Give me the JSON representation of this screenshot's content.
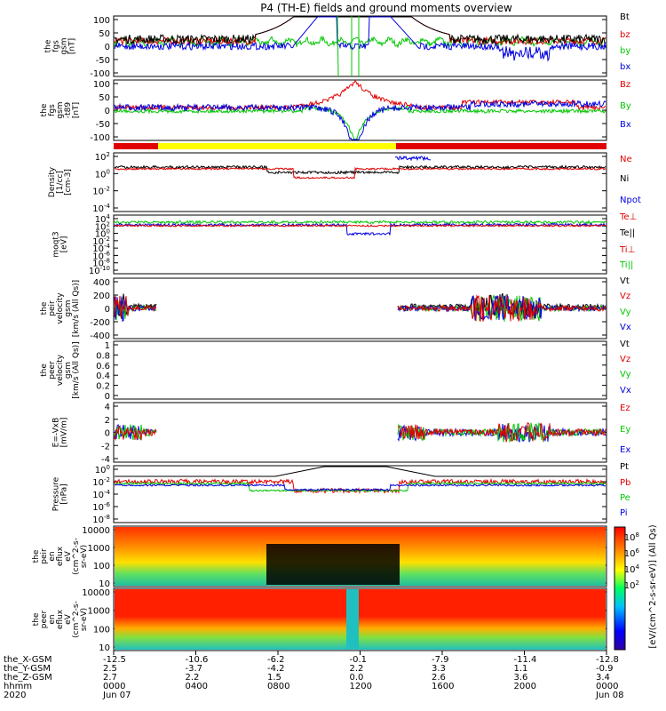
{
  "title": "P4 (TH-E) fields and ground moments overview",
  "colors": {
    "black": "#000000",
    "red": "#e00000",
    "green": "#00c800",
    "blue": "#0000e0",
    "yellow": "#ffff00"
  },
  "chart_data": [
    {
      "type": "line",
      "panel": "fgs_gsm",
      "ylabel": [
        "the",
        "fgs",
        "gsm",
        "[nT]"
      ],
      "yticks": [
        100,
        50,
        0,
        -50,
        -100
      ],
      "ylim": [
        -100,
        100
      ],
      "series": [
        {
          "name": "Bt",
          "color": "#000000"
        },
        {
          "name": "bz",
          "color": "#e00000"
        },
        {
          "name": "by",
          "color": "#00c800"
        },
        {
          "name": "bx",
          "color": "#0000e0"
        }
      ]
    },
    {
      "type": "line",
      "panel": "fgs_gse_detrended",
      "ylabel": [
        "the",
        "fgs",
        "gsm",
        "-t89",
        "[nT]"
      ],
      "yticks": [
        100,
        50,
        0,
        -50,
        -100
      ],
      "ylim": [
        -120,
        110
      ],
      "series": [
        {
          "name": "Bz",
          "color": "#e00000"
        },
        {
          "name": "By",
          "color": "#00c800"
        },
        {
          "name": "Bx",
          "color": "#0000e0"
        }
      ]
    },
    {
      "type": "line",
      "panel": "density",
      "ylabel": [
        "Density",
        "[1/cc]",
        "[cm-3]"
      ],
      "yticks": [
        "10^2",
        "10^0",
        "10^-2",
        "10^-4"
      ],
      "scale": "log",
      "series": [
        {
          "name": "Ne",
          "color": "#e00000"
        },
        {
          "name": "Ni",
          "color": "#000000"
        },
        {
          "name": "Npot",
          "color": "#0000e0"
        }
      ]
    },
    {
      "type": "line",
      "panel": "temperature",
      "ylabel": [
        "moqt3",
        "[eV]"
      ],
      "yticks": [
        "10^4",
        "10^2",
        "10^0",
        "10^-2",
        "10^-4",
        "10^-6",
        "10^-8",
        "10^-10"
      ],
      "scale": "log",
      "series": [
        {
          "name": "Te⊥",
          "color": "#e00000"
        },
        {
          "name": "Te||",
          "color": "#000000"
        },
        {
          "name": "Ti⊥",
          "color": "#e00000"
        },
        {
          "name": "Ti||",
          "color": "#00c800"
        }
      ]
    },
    {
      "type": "line",
      "panel": "peir_velocity",
      "ylabel": [
        "the",
        "peir",
        "velocity",
        "gsm",
        "[km/s (All Qs)]"
      ],
      "yticks": [
        400,
        200,
        0,
        -200,
        -400
      ],
      "ylim": [
        -400,
        400
      ],
      "series": [
        {
          "name": "Vt",
          "color": "#000000"
        },
        {
          "name": "Vz",
          "color": "#e00000"
        },
        {
          "name": "Vy",
          "color": "#00c800"
        },
        {
          "name": "Vx",
          "color": "#0000e0"
        }
      ]
    },
    {
      "type": "line",
      "panel": "peer_velocity",
      "ylabel": [
        "the",
        "peer",
        "velocity",
        "gsm",
        "[km/s (All Qs)]"
      ],
      "yticks": [
        1.0,
        0.8,
        0.6,
        0.4,
        0.2,
        0.0
      ],
      "ylim": [
        0,
        1
      ],
      "series": [
        {
          "name": "Vt",
          "color": "#000000"
        },
        {
          "name": "Vz",
          "color": "#e00000"
        },
        {
          "name": "Vy",
          "color": "#00c800"
        },
        {
          "name": "Vx",
          "color": "#0000e0"
        }
      ]
    },
    {
      "type": "line",
      "panel": "efield",
      "ylabel": [
        "E=-VxB",
        "[mV/m]"
      ],
      "yticks": [
        4,
        2,
        0,
        -2,
        -4
      ],
      "ylim": [
        -4,
        4
      ],
      "series": [
        {
          "name": "Ez",
          "color": "#e00000"
        },
        {
          "name": "Ey",
          "color": "#00c800"
        },
        {
          "name": "Ex",
          "color": "#0000e0"
        }
      ]
    },
    {
      "type": "line",
      "panel": "pressure",
      "ylabel": [
        "Pressure",
        "[nPa]"
      ],
      "yticks": [
        "10^0",
        "10^-2",
        "10^-4",
        "10^-6",
        "10^-8"
      ],
      "scale": "log",
      "series": [
        {
          "name": "Pt",
          "color": "#000000"
        },
        {
          "name": "Pb",
          "color": "#e00000"
        },
        {
          "name": "Pe",
          "color": "#00c800"
        },
        {
          "name": "Pi",
          "color": "#0000e0"
        }
      ]
    },
    {
      "type": "heatmap",
      "panel": "peir_spectrogram",
      "ylabel": [
        "the",
        "peir",
        "en",
        "eflux",
        "eV",
        "(cm^2-s-",
        "sr-eV)"
      ],
      "yticks": [
        10000,
        1000,
        100,
        10
      ],
      "scale": "log"
    },
    {
      "type": "heatmap",
      "panel": "peer_spectrogram",
      "ylabel": [
        "the",
        "peer",
        "en",
        "eflux",
        "eV",
        "(cm^2-s-",
        "sr-eV)"
      ],
      "yticks": [
        10000,
        1000,
        100,
        10
      ],
      "scale": "log"
    }
  ],
  "legend_lines": [
    [
      "Bt",
      "bz",
      "by",
      "bx"
    ],
    [
      "Bz",
      "By",
      "Bx"
    ],
    [
      "Ne",
      "Ni",
      "Npot"
    ],
    [
      "Te⊥",
      "Te||",
      "Ti⊥",
      "Ti||"
    ],
    [
      "Vt",
      "Vz",
      "Vy",
      "Vx"
    ],
    [
      "Vt",
      "Vz",
      "Vy",
      "Vx"
    ],
    [
      "Ez",
      "Ey",
      "Ex"
    ],
    [
      "Pt",
      "Pb",
      "Pe",
      "Pi"
    ]
  ],
  "colorbar": {
    "label": "[eV/(cm^2-s-sr-eV)] (All Qs)",
    "ticks": [
      "10^8",
      "10^6",
      "10^4",
      "10^2"
    ]
  },
  "xaxis": {
    "row_labels": [
      "the_X-GSM",
      "the_Y-GSM",
      "the_Z-GSM",
      "hhmm",
      "2020"
    ],
    "columns": [
      [
        "-12.5",
        "2.5",
        "2.7",
        "0000",
        "Jun 07"
      ],
      [
        "-10.6",
        "-3.7",
        "2.2",
        "0400",
        ""
      ],
      [
        "-6.2",
        "-4.2",
        "1.5",
        "0800",
        ""
      ],
      [
        "-0.1",
        "2.2",
        "0.0",
        "1200",
        ""
      ],
      [
        "-7.9",
        "3.3",
        "2.6",
        "1600",
        ""
      ],
      [
        "-11.4",
        "1.1",
        "3.6",
        "2000",
        ""
      ],
      [
        "-12.8",
        "-0.9",
        "3.4",
        "0000",
        "Jun 08"
      ]
    ]
  }
}
